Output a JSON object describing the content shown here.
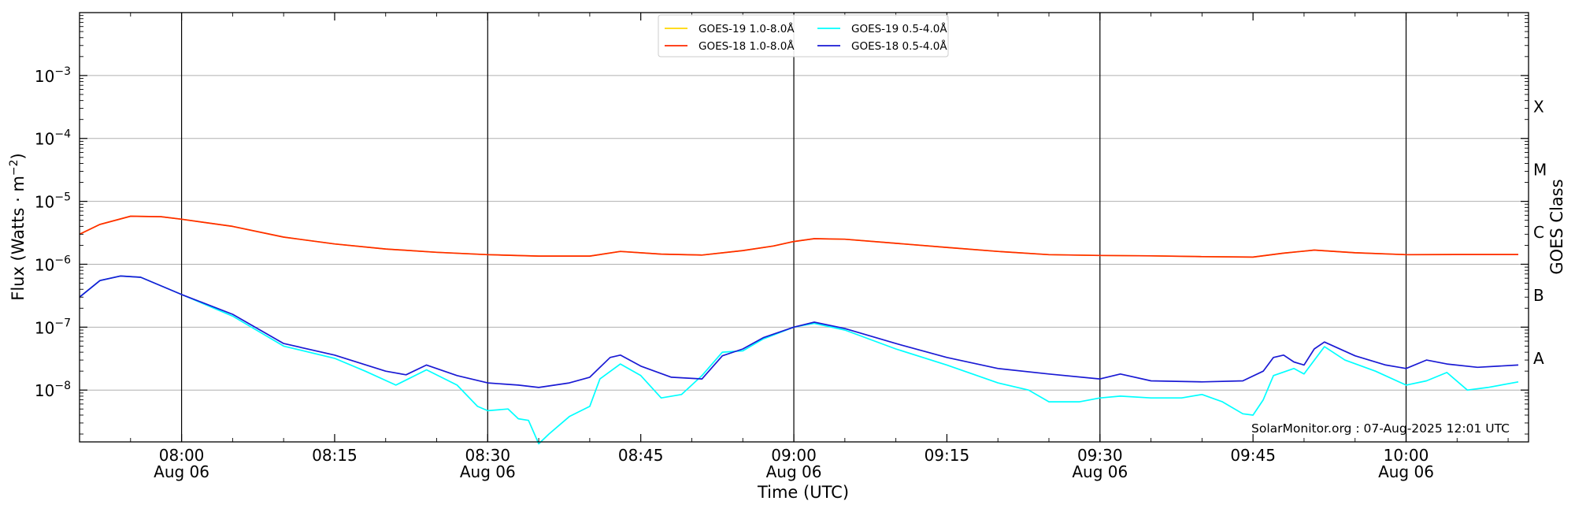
{
  "chart_data": {
    "type": "line",
    "xlabel": "Time (UTC)",
    "ylabel_main": "Flux (Watts · m",
    "ylabel_sup": "−2",
    "ylabel_close": ")",
    "right_label": "GOES Class",
    "credit": "SolarMonitor.org : 07-Aug-2025 12:01 UTC",
    "x_range": [
      "07:50",
      "10:12"
    ],
    "y_scale": "log",
    "ylim": [
      1.5e-09,
      0.01
    ],
    "y_ticks": [
      {
        "exp": 3,
        "value": 0.001
      },
      {
        "exp": 4,
        "value": 0.0001
      },
      {
        "exp": 5,
        "value": 1e-05
      },
      {
        "exp": 6,
        "value": 1e-06
      },
      {
        "exp": 7,
        "value": 1e-07
      },
      {
        "exp": 8,
        "value": 1e-08
      }
    ],
    "y_tick_base": "10",
    "y_tick_sign": "−",
    "x_ticks": [
      {
        "time": "08:00",
        "label": "08:00",
        "date": "Aug 06"
      },
      {
        "time": "08:15",
        "label": "08:15",
        "date": ""
      },
      {
        "time": "08:30",
        "label": "08:30",
        "date": "Aug 06"
      },
      {
        "time": "08:45",
        "label": "08:45",
        "date": ""
      },
      {
        "time": "09:00",
        "label": "09:00",
        "date": "Aug 06"
      },
      {
        "time": "09:15",
        "label": "09:15",
        "date": ""
      },
      {
        "time": "09:30",
        "label": "09:30",
        "date": "Aug 06"
      },
      {
        "time": "09:45",
        "label": "09:45",
        "date": ""
      },
      {
        "time": "10:00",
        "label": "10:00",
        "date": "Aug 06"
      }
    ],
    "class_labels": [
      {
        "label": "X",
        "value": 0.00032
      },
      {
        "label": "M",
        "value": 3.2e-05
      },
      {
        "label": "C",
        "value": 3.2e-06
      },
      {
        "label": "B",
        "value": 3.2e-07
      },
      {
        "label": "A",
        "value": 3.2e-08
      }
    ],
    "grid": "horizontal at decades, vertical at hours and half-hours",
    "legend": {
      "placement": "top-center"
    },
    "series": [
      {
        "name": "GOES-19 1.0-8.0Å",
        "color": "#ffd700",
        "points": [
          [
            "07:50",
            3e-06
          ],
          [
            "07:52",
            4.3e-06
          ],
          [
            "07:55",
            5.8e-06
          ],
          [
            "07:58",
            5.7e-06
          ],
          [
            "08:00",
            5.2e-06
          ],
          [
            "08:05",
            4e-06
          ],
          [
            "08:10",
            2.7e-06
          ],
          [
            "08:15",
            2.1e-06
          ],
          [
            "08:20",
            1.75e-06
          ],
          [
            "08:25",
            1.55e-06
          ],
          [
            "08:30",
            1.42e-06
          ],
          [
            "08:35",
            1.35e-06
          ],
          [
            "08:40",
            1.35e-06
          ],
          [
            "08:43",
            1.6e-06
          ],
          [
            "08:47",
            1.45e-06
          ],
          [
            "08:51",
            1.4e-06
          ],
          [
            "08:55",
            1.65e-06
          ],
          [
            "08:58",
            1.95e-06
          ],
          [
            "09:00",
            2.3e-06
          ],
          [
            "09:02",
            2.55e-06
          ],
          [
            "09:05",
            2.5e-06
          ],
          [
            "09:10",
            2.15e-06
          ],
          [
            "09:15",
            1.85e-06
          ],
          [
            "09:20",
            1.6e-06
          ],
          [
            "09:25",
            1.42e-06
          ],
          [
            "09:30",
            1.38e-06
          ],
          [
            "09:35",
            1.36e-06
          ],
          [
            "09:40",
            1.32e-06
          ],
          [
            "09:45",
            1.3e-06
          ],
          [
            "09:48",
            1.5e-06
          ],
          [
            "09:51",
            1.68e-06
          ],
          [
            "09:55",
            1.52e-06
          ],
          [
            "10:00",
            1.42e-06
          ],
          [
            "10:05",
            1.43e-06
          ],
          [
            "10:11",
            1.43e-06
          ]
        ]
      },
      {
        "name": "GOES-18 1.0-8.0Å",
        "color": "#ff2a00",
        "points": [
          [
            "07:50",
            3e-06
          ],
          [
            "07:52",
            4.3e-06
          ],
          [
            "07:55",
            5.8e-06
          ],
          [
            "07:58",
            5.7e-06
          ],
          [
            "08:00",
            5.2e-06
          ],
          [
            "08:05",
            4e-06
          ],
          [
            "08:10",
            2.7e-06
          ],
          [
            "08:15",
            2.1e-06
          ],
          [
            "08:20",
            1.75e-06
          ],
          [
            "08:25",
            1.55e-06
          ],
          [
            "08:30",
            1.42e-06
          ],
          [
            "08:35",
            1.35e-06
          ],
          [
            "08:40",
            1.35e-06
          ],
          [
            "08:43",
            1.6e-06
          ],
          [
            "08:47",
            1.45e-06
          ],
          [
            "08:51",
            1.4e-06
          ],
          [
            "08:55",
            1.65e-06
          ],
          [
            "08:58",
            1.95e-06
          ],
          [
            "09:00",
            2.3e-06
          ],
          [
            "09:02",
            2.55e-06
          ],
          [
            "09:05",
            2.5e-06
          ],
          [
            "09:10",
            2.15e-06
          ],
          [
            "09:15",
            1.85e-06
          ],
          [
            "09:20",
            1.6e-06
          ],
          [
            "09:25",
            1.42e-06
          ],
          [
            "09:30",
            1.38e-06
          ],
          [
            "09:35",
            1.36e-06
          ],
          [
            "09:40",
            1.32e-06
          ],
          [
            "09:45",
            1.3e-06
          ],
          [
            "09:48",
            1.5e-06
          ],
          [
            "09:51",
            1.68e-06
          ],
          [
            "09:55",
            1.52e-06
          ],
          [
            "10:00",
            1.42e-06
          ],
          [
            "10:05",
            1.43e-06
          ],
          [
            "10:11",
            1.43e-06
          ]
        ]
      },
      {
        "name": "GOES-19 0.5-4.0Å",
        "color": "#00ffff",
        "points": [
          [
            "07:50",
            3e-07
          ],
          [
            "07:52",
            5.5e-07
          ],
          [
            "07:54",
            6.5e-07
          ],
          [
            "07:56",
            6.2e-07
          ],
          [
            "08:00",
            3.3e-07
          ],
          [
            "08:05",
            1.5e-07
          ],
          [
            "08:10",
            5e-08
          ],
          [
            "08:15",
            3.2e-08
          ],
          [
            "08:18",
            2e-08
          ],
          [
            "08:21",
            1.2e-08
          ],
          [
            "08:24",
            2.1e-08
          ],
          [
            "08:27",
            1.2e-08
          ],
          [
            "08:29",
            5.5e-09
          ],
          [
            "08:30",
            4.7e-09
          ],
          [
            "08:32",
            5e-09
          ],
          [
            "08:33",
            3.5e-09
          ],
          [
            "08:34",
            3.3e-09
          ],
          [
            "08:35",
            1.4e-09
          ],
          [
            "08:36",
            2e-09
          ],
          [
            "08:38",
            3.8e-09
          ],
          [
            "08:40",
            5.5e-09
          ],
          [
            "08:41",
            1.5e-08
          ],
          [
            "08:43",
            2.6e-08
          ],
          [
            "08:45",
            1.7e-08
          ],
          [
            "08:47",
            7.5e-09
          ],
          [
            "08:49",
            8.5e-09
          ],
          [
            "08:51",
            1.7e-08
          ],
          [
            "08:53",
            4e-08
          ],
          [
            "08:55",
            4.2e-08
          ],
          [
            "08:57",
            6.5e-08
          ],
          [
            "09:00",
            1e-07
          ],
          [
            "09:02",
            1.15e-07
          ],
          [
            "09:05",
            9e-08
          ],
          [
            "09:10",
            4.5e-08
          ],
          [
            "09:15",
            2.5e-08
          ],
          [
            "09:20",
            1.3e-08
          ],
          [
            "09:23",
            1e-08
          ],
          [
            "09:25",
            6.5e-09
          ],
          [
            "09:28",
            6.5e-09
          ],
          [
            "09:30",
            7.5e-09
          ],
          [
            "09:32",
            8e-09
          ],
          [
            "09:35",
            7.5e-09
          ],
          [
            "09:38",
            7.5e-09
          ],
          [
            "09:40",
            8.5e-09
          ],
          [
            "09:42",
            6.5e-09
          ],
          [
            "09:44",
            4.2e-09
          ],
          [
            "09:45",
            4e-09
          ],
          [
            "09:46",
            7e-09
          ],
          [
            "09:47",
            1.7e-08
          ],
          [
            "09:49",
            2.2e-08
          ],
          [
            "09:50",
            1.8e-08
          ],
          [
            "09:52",
            4.9e-08
          ],
          [
            "09:54",
            3e-08
          ],
          [
            "09:57",
            2e-08
          ],
          [
            "10:00",
            1.2e-08
          ],
          [
            "10:02",
            1.4e-08
          ],
          [
            "10:04",
            1.9e-08
          ],
          [
            "10:06",
            1e-08
          ],
          [
            "10:08",
            1.1e-08
          ],
          [
            "10:11",
            1.35e-08
          ]
        ]
      },
      {
        "name": "GOES-18 0.5-4.0Å",
        "color": "#1a1ad4",
        "points": [
          [
            "07:50",
            3e-07
          ],
          [
            "07:52",
            5.5e-07
          ],
          [
            "07:54",
            6.5e-07
          ],
          [
            "07:56",
            6.2e-07
          ],
          [
            "08:00",
            3.3e-07
          ],
          [
            "08:05",
            1.6e-07
          ],
          [
            "08:10",
            5.5e-08
          ],
          [
            "08:15",
            3.6e-08
          ],
          [
            "08:20",
            2e-08
          ],
          [
            "08:22",
            1.75e-08
          ],
          [
            "08:24",
            2.5e-08
          ],
          [
            "08:27",
            1.7e-08
          ],
          [
            "08:30",
            1.3e-08
          ],
          [
            "08:33",
            1.2e-08
          ],
          [
            "08:35",
            1.1e-08
          ],
          [
            "08:38",
            1.3e-08
          ],
          [
            "08:40",
            1.6e-08
          ],
          [
            "08:42",
            3.3e-08
          ],
          [
            "08:43",
            3.6e-08
          ],
          [
            "08:45",
            2.4e-08
          ],
          [
            "08:48",
            1.6e-08
          ],
          [
            "08:51",
            1.5e-08
          ],
          [
            "08:53",
            3.5e-08
          ],
          [
            "08:55",
            4.5e-08
          ],
          [
            "08:57",
            6.8e-08
          ],
          [
            "09:00",
            1e-07
          ],
          [
            "09:02",
            1.2e-07
          ],
          [
            "09:05",
            9.5e-08
          ],
          [
            "09:10",
            5.5e-08
          ],
          [
            "09:15",
            3.3e-08
          ],
          [
            "09:20",
            2.2e-08
          ],
          [
            "09:25",
            1.8e-08
          ],
          [
            "09:30",
            1.5e-08
          ],
          [
            "09:32",
            1.8e-08
          ],
          [
            "09:35",
            1.4e-08
          ],
          [
            "09:40",
            1.35e-08
          ],
          [
            "09:44",
            1.4e-08
          ],
          [
            "09:46",
            2e-08
          ],
          [
            "09:47",
            3.3e-08
          ],
          [
            "09:48",
            3.6e-08
          ],
          [
            "09:49",
            2.8e-08
          ],
          [
            "09:50",
            2.5e-08
          ],
          [
            "09:51",
            4.5e-08
          ],
          [
            "09:52",
            5.8e-08
          ],
          [
            "09:55",
            3.5e-08
          ],
          [
            "09:58",
            2.5e-08
          ],
          [
            "10:00",
            2.2e-08
          ],
          [
            "10:02",
            3e-08
          ],
          [
            "10:04",
            2.6e-08
          ],
          [
            "10:07",
            2.3e-08
          ],
          [
            "10:11",
            2.5e-08
          ]
        ]
      }
    ]
  }
}
